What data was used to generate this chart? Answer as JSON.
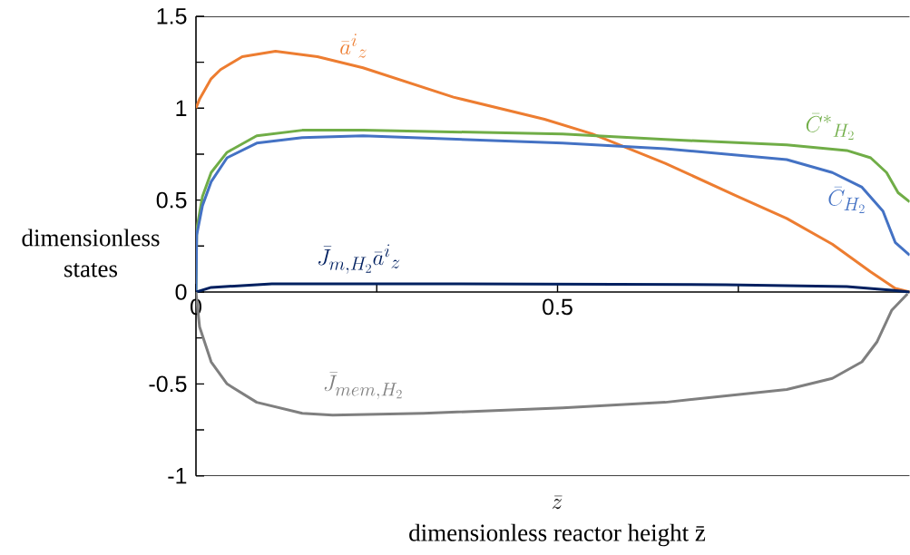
{
  "chart_data": {
    "type": "line",
    "xlabel": "dimensionless reactor height z̄",
    "ylabel": "dimensionless states",
    "annotations": [
      "\\bar{z}"
    ],
    "xlim": [
      0,
      0.987
    ],
    "ylim": [
      -1,
      1.5
    ],
    "xticks": [
      0,
      {
        "value": 0.25,
        "label": null
      },
      0.5,
      {
        "value": 0.75,
        "label": null
      }
    ],
    "yticks": [
      -1,
      {
        "value": -0.75,
        "label": null
      },
      -0.5,
      {
        "value": -0.25,
        "label": null
      },
      0,
      {
        "value": 0.25,
        "label": null
      },
      0.5,
      {
        "value": 0.75,
        "label": null
      },
      1,
      {
        "value": 1.25,
        "label": null
      },
      1.5
    ],
    "marker": "none",
    "line_style": "solid",
    "grid": false,
    "series": [
      {
        "name": "\\bar{a}^{i}{}_{z}",
        "color": "#ed7d31",
        "x": [
          0,
          0.005,
          0.021,
          0.034,
          0.064,
          0.11,
          0.168,
          0.231,
          0.356,
          0.482,
          0.548,
          0.649,
          0.749,
          0.817,
          0.88,
          0.933,
          0.967,
          0.987
        ],
        "values": [
          1.0,
          1.05,
          1.16,
          1.21,
          1.28,
          1.31,
          1.28,
          1.22,
          1.06,
          0.94,
          0.86,
          0.7,
          0.52,
          0.4,
          0.26,
          0.11,
          0.02,
          0.0
        ]
      },
      {
        "name": "\\bar{C}^{*}{}_{H_2}",
        "color": "#70ad47",
        "x": [
          0,
          0.001,
          0.009,
          0.021,
          0.043,
          0.084,
          0.147,
          0.231,
          0.507,
          0.649,
          0.817,
          0.9,
          0.933,
          0.955,
          0.971,
          0.987
        ],
        "values": [
          0,
          0.34,
          0.52,
          0.65,
          0.76,
          0.85,
          0.88,
          0.88,
          0.86,
          0.83,
          0.8,
          0.77,
          0.73,
          0.65,
          0.54,
          0.49
        ]
      },
      {
        "name": "\\bar{C}_{H_2}",
        "color": "#4472c4",
        "x": [
          0,
          0.001,
          0.009,
          0.021,
          0.043,
          0.084,
          0.147,
          0.231,
          0.507,
          0.649,
          0.817,
          0.88,
          0.921,
          0.95,
          0.967,
          0.987
        ],
        "values": [
          0,
          0.31,
          0.47,
          0.6,
          0.73,
          0.81,
          0.84,
          0.85,
          0.81,
          0.78,
          0.72,
          0.65,
          0.57,
          0.44,
          0.27,
          0.2
        ]
      },
      {
        "name": "\\bar{J}_{m,H_2}\\bar{a}^{i}{}_{z}",
        "color": "#002060",
        "x": [
          0,
          0.021,
          0.105,
          0.356,
          0.733,
          0.9,
          0.962,
          0.987
        ],
        "values": [
          0,
          0.025,
          0.044,
          0.045,
          0.04,
          0.03,
          0.01,
          0.0
        ]
      },
      {
        "name": "\\bar{J}_{mem,H_2}",
        "color": "#7f7f7f",
        "x": [
          0,
          0.005,
          0.021,
          0.043,
          0.084,
          0.147,
          0.189,
          0.315,
          0.507,
          0.649,
          0.817,
          0.88,
          0.921,
          0.942,
          0.962,
          0.984
        ],
        "values": [
          0,
          -0.19,
          -0.38,
          -0.5,
          -0.6,
          -0.66,
          -0.67,
          -0.66,
          -0.63,
          -0.6,
          -0.53,
          -0.47,
          -0.38,
          -0.27,
          -0.1,
          -0.01
        ]
      }
    ]
  }
}
